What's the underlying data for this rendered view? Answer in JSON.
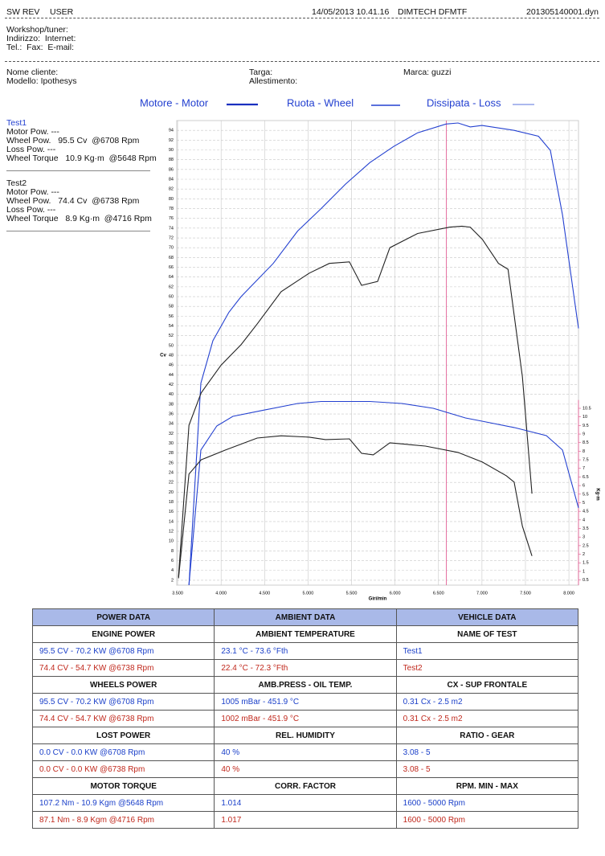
{
  "header": {
    "sw": "SW REV",
    "user": "USER",
    "date": "14/05/2013 10.41.16",
    "company": "DIMTECH DFMTF",
    "file": "201305140001.dyn"
  },
  "workshop": [
    "Workshop/tuner:",
    "Indirizzo:  Internet:",
    "Tel.:  Fax:  E-mail:"
  ],
  "customer": {
    "name": "Nome cliente:",
    "model": "Modello: Ipothesys",
    "plate": "Targa:",
    "trim": "Allestimento:",
    "brand": "Marca: guzzi"
  },
  "tests": [
    {
      "title": "Test1",
      "lines": [
        "Motor Pow. ---",
        "Wheel Pow.   95.5 Cv  @6708 Rpm",
        "Loss Pow. ---",
        "Wheel Torque   10.9 Kg·m  @5648 Rpm"
      ]
    },
    {
      "title": "Test2",
      "lines": [
        "Motor Pow. ---",
        "Wheel Pow.   74.4 Cv  @6738 Rpm",
        "Loss Pow. ---",
        "Wheel Torque   8.9 Kg·m  @4716 Rpm"
      ]
    }
  ],
  "chart_data": {
    "type": "line",
    "legend": [
      "Motore - Motor",
      "Ruota - Wheel",
      "Dissipata - Loss"
    ],
    "x_label": "Giri/min",
    "y_label": "Cv",
    "y2_label": "Kg·m",
    "xlim": [
      3490,
      8110
    ],
    "ylim": [
      1,
      96
    ],
    "y2lim": [
      0.2,
      10.8
    ],
    "grid": true,
    "cursor_x": 6590,
    "cursor_color": "#e0508a",
    "xticks": [
      {
        "value": 3500,
        "label": "3.500"
      },
      {
        "value": 4000,
        "label": "4.000"
      },
      {
        "value": 4500,
        "label": "4.500"
      },
      {
        "value": 5000,
        "label": "5.000"
      },
      {
        "value": 5500,
        "label": "5.500"
      },
      {
        "value": 6000,
        "label": "6.000"
      },
      {
        "value": 6500,
        "label": "6.500"
      },
      {
        "value": 7000,
        "label": "7.000"
      },
      {
        "value": 7500,
        "label": "7.500"
      },
      {
        "value": 8000,
        "label": "8.000"
      }
    ],
    "yticks": [
      2,
      4,
      6,
      8,
      10,
      12,
      14,
      16,
      18,
      20,
      22,
      24,
      26,
      28,
      30,
      32,
      34,
      36,
      38,
      40,
      42,
      44,
      46,
      48,
      50,
      52,
      54,
      56,
      58,
      60,
      62,
      64,
      66,
      68,
      70,
      72,
      74,
      76,
      78,
      80,
      82,
      84,
      86,
      88,
      90,
      92,
      94
    ],
    "y2ticks": [
      0.5,
      1,
      1.5,
      2,
      2.5,
      3,
      3.5,
      4,
      4.5,
      5,
      5.5,
      6,
      6.5,
      7,
      7.5,
      8,
      8.5,
      9,
      9.5,
      10,
      10.5
    ],
    "series": [
      {
        "color": "#2340d0",
        "x": [
          3630,
          3767,
          3906,
          4090,
          4230,
          4600,
          4880,
          5150,
          5430,
          5710,
          5985,
          6260,
          6586,
          6725,
          6865,
          7000,
          7370,
          7650,
          7787,
          7926,
          8110
        ],
        "values": [
          1,
          42.3,
          51,
          56.8,
          60,
          66.8,
          73.4,
          78,
          83,
          87.4,
          90.7,
          93.5,
          95.3,
          95.5,
          94.7,
          95,
          94,
          92.8,
          89.9,
          76.7,
          53.5
        ]
      },
      {
        "color": "#222222",
        "x": [
          3510,
          3630,
          3770,
          4000,
          4230,
          4415,
          4690,
          5015,
          5245,
          5476,
          5615,
          5800,
          5940,
          6260,
          6630,
          6770,
          6865,
          7005,
          7190,
          7300,
          7465,
          7575
        ],
        "values": [
          2.7,
          33.7,
          40.3,
          46,
          50.2,
          54.4,
          61,
          64.8,
          66.8,
          67.1,
          62.3,
          63.1,
          70,
          72.9,
          74.2,
          74.4,
          74.2,
          71.7,
          66.8,
          65.6,
          43.6,
          19.7
        ]
      },
      {
        "color": "#2340d0",
        "axis": "y2",
        "x": [
          3630,
          3767,
          3950,
          4135,
          4500,
          4880,
          5150,
          5520,
          5710,
          6080,
          6440,
          6810,
          7000,
          7370,
          7740,
          7926,
          8110
        ],
        "values": [
          0.22,
          8.07,
          9.47,
          10.03,
          10.4,
          10.78,
          10.9,
          10.9,
          10.9,
          10.78,
          10.5,
          9.94,
          9.75,
          9.38,
          8.91,
          8.07,
          4.7
        ]
      },
      {
        "color": "#222222",
        "axis": "y2",
        "x": [
          3510,
          3630,
          3770,
          4050,
          4415,
          4690,
          5015,
          5200,
          5476,
          5615,
          5750,
          5940,
          6350,
          6725,
          7005,
          7280,
          7370,
          7465,
          7575
        ],
        "values": [
          0.6,
          6.67,
          7.5,
          8.07,
          8.77,
          8.9,
          8.82,
          8.68,
          8.72,
          7.88,
          7.79,
          8.49,
          8.3,
          7.93,
          7.37,
          6.57,
          6.2,
          3.63,
          1.9
        ]
      }
    ]
  },
  "table": {
    "header": [
      "POWER DATA",
      "AMBIENT DATA",
      "VEHICLE DATA"
    ],
    "sections": [
      {
        "titles": [
          "ENGINE POWER",
          "AMBIENT TEMPERATURE",
          "NAME OF TEST"
        ],
        "rows": [
          [
            "95.5 CV - 70.2 KW  @6708 Rpm",
            "23.1 °C - 73.6 °Fth",
            "Test1"
          ],
          [
            "74.4 CV - 54.7 KW  @6738 Rpm",
            "22.4 °C - 72.3 °Fth",
            "Test2"
          ]
        ]
      },
      {
        "titles": [
          "WHEELS POWER",
          "AMB.PRESS - OIL TEMP.",
          "CX - SUP FRONTALE"
        ],
        "rows": [
          [
            "95.5 CV - 70.2 KW  @6708 Rpm",
            "1005 mBar - 451.9 °C",
            "0.31 Cx - 2.5 m2"
          ],
          [
            "74.4 CV - 54.7 KW  @6738 Rpm",
            "1002 mBar - 451.9 °C",
            "0.31 Cx - 2.5 m2"
          ]
        ]
      },
      {
        "titles": [
          "LOST POWER",
          "REL. HUMIDITY",
          "RATIO - GEAR"
        ],
        "rows": [
          [
            "0.0 CV - 0.0 KW  @6708 Rpm",
            "40 %",
            "3.08 - 5"
          ],
          [
            "0.0 CV - 0.0 KW  @6738 Rpm",
            "40 %",
            "3.08 - 5"
          ]
        ]
      },
      {
        "titles": [
          "MOTOR TORQUE",
          "CORR. FACTOR",
          "RPM. MIN - MAX"
        ],
        "rows": [
          [
            "107.2 Nm - 10.9 Kgm  @5648 Rpm",
            "1.014",
            "1600 - 5000 Rpm"
          ],
          [
            "87.1 Nm - 8.9 Kgm  @4716 Rpm",
            "1.017",
            "1600 - 5000 Rpm"
          ]
        ]
      }
    ]
  }
}
